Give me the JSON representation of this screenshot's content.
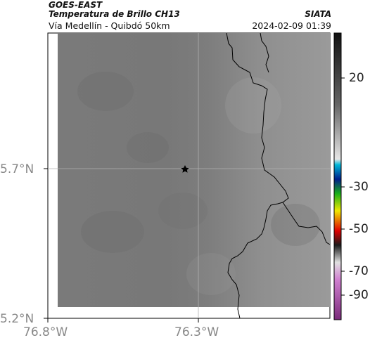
{
  "header": {
    "satellite": "GOES-EAST",
    "product": "Temperatura de Brillo CH13",
    "region": "Vía Medellín - Quibdó 50km",
    "organization": "SIATA",
    "datetime": "2024-02-09 01:39"
  },
  "axes": {
    "lat_ticks": [
      "5.7°N",
      "5.2°N"
    ],
    "lon_ticks": [
      "76.8°W",
      "76.3°W"
    ]
  },
  "colorbar": {
    "ticks": [
      "20",
      "-30",
      "-50",
      "-70",
      "-90"
    ]
  },
  "map": {
    "marker": "star-marker"
  }
}
